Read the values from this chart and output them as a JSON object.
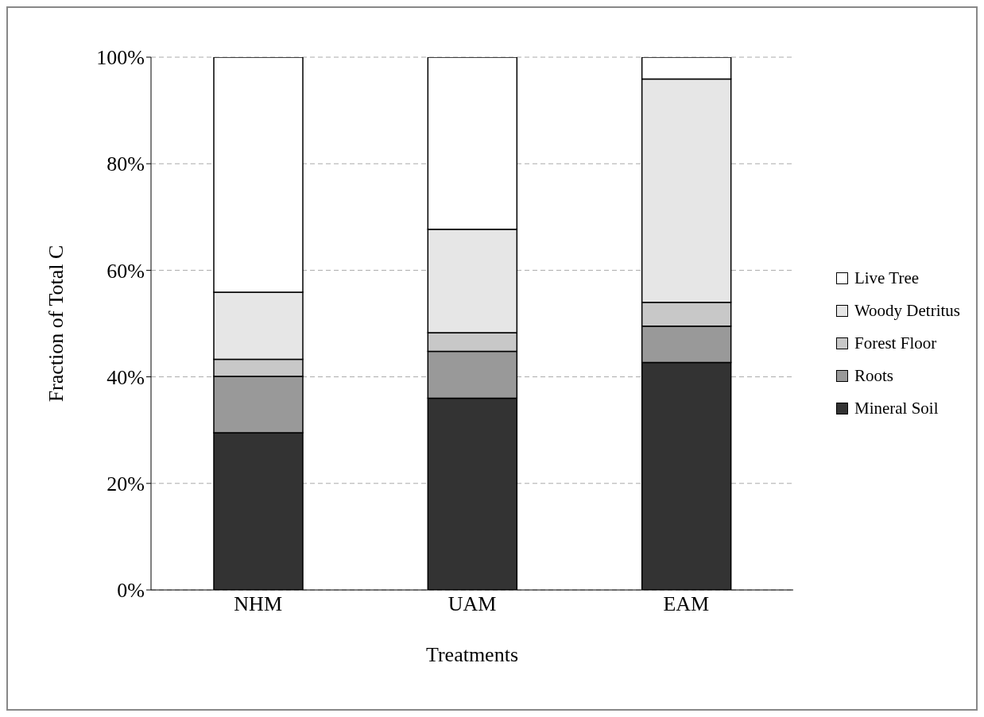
{
  "chart_data": {
    "type": "bar",
    "stacked": true,
    "xlabel": "Treatments",
    "ylabel": "Fraction of Total C",
    "categories": [
      "NHM",
      "UAM",
      "EAM"
    ],
    "series": [
      {
        "name": "Mineral Soil",
        "color": "#333333",
        "values": [
          29.5,
          36.0,
          42.7
        ]
      },
      {
        "name": "Roots",
        "color": "#999999",
        "values": [
          10.6,
          8.8,
          6.8
        ]
      },
      {
        "name": "Forest Floor",
        "color": "#c8c8c8",
        "values": [
          3.2,
          3.5,
          4.5
        ]
      },
      {
        "name": "Woody Detritus",
        "color": "#e6e6e6",
        "values": [
          12.6,
          19.4,
          41.9
        ]
      },
      {
        "name": "Live Tree",
        "color": "#ffffff",
        "values": [
          44.1,
          32.3,
          4.1
        ]
      }
    ],
    "ylim": [
      0,
      100
    ],
    "yticks": [
      {
        "value": 0,
        "label": "0%"
      },
      {
        "value": 20,
        "label": "20%"
      },
      {
        "value": 40,
        "label": "40%"
      },
      {
        "value": 60,
        "label": "60%"
      },
      {
        "value": 80,
        "label": "80%"
      },
      {
        "value": 100,
        "label": "100%"
      }
    ],
    "grid": "y",
    "legend": "right"
  }
}
